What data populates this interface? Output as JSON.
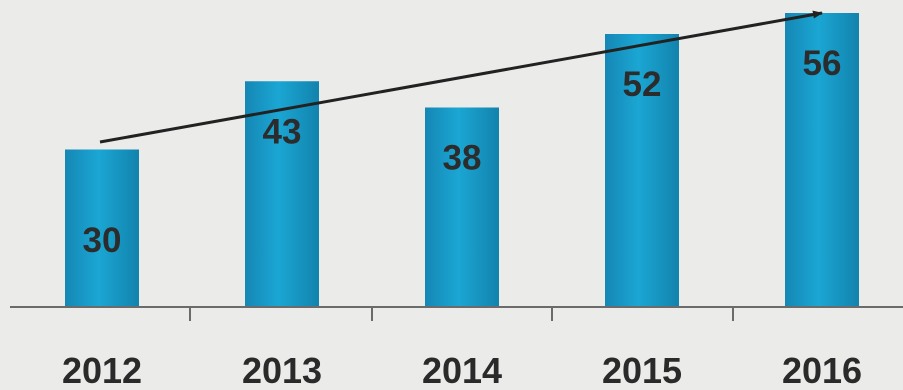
{
  "chart_data": {
    "type": "bar",
    "categories": [
      "2012",
      "2013",
      "2014",
      "2015",
      "2016"
    ],
    "values": [
      30,
      43,
      38,
      52,
      56
    ],
    "title": "",
    "xlabel": "",
    "ylabel": "",
    "ylim": [
      0,
      56
    ],
    "grid": false,
    "legend": "none",
    "bar_color": "#1a9fc9",
    "trend_arrow": {
      "from_category": "2012",
      "to_category": "2016",
      "color": "#222222"
    }
  }
}
